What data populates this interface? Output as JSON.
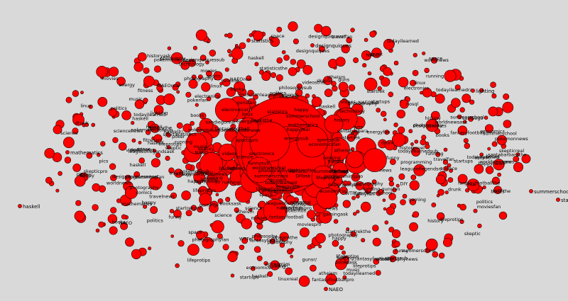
{
  "colors": {
    "background": "#d9d9d9",
    "node": "#ff0000",
    "node_stroke": "#1a0000",
    "label": "#000000"
  },
  "graph": {
    "layout": "radial-cluster",
    "labels": [
      "haskell",
      "NAEO",
      "startups",
      "summerschool",
      "statistics",
      "designquiques",
      "lighting",
      "mathematics",
      "nosql",
      "worldnews",
      "politics",
      "economics",
      "lifeprotips",
      "movies",
      "leagueoflegends",
      "gaming",
      "electronics",
      "music",
      "science",
      "WTF",
      "videos",
      "funny",
      "pics",
      "history",
      "technology",
      "fantasyfootball",
      "santabarbara",
      "sandiego",
      "news",
      "fitness",
      "drunk",
      "books",
      "food",
      "space",
      "todayilearned",
      "programming",
      "linux",
      "photography",
      "atheism",
      "travel",
      "sports",
      "startrek",
      "philosophy",
      "comics",
      "cooking",
      "DIY",
      "guns",
      "happy",
      "pokemon",
      "skeptic",
      "poker",
      "energy",
      "running"
    ]
  }
}
